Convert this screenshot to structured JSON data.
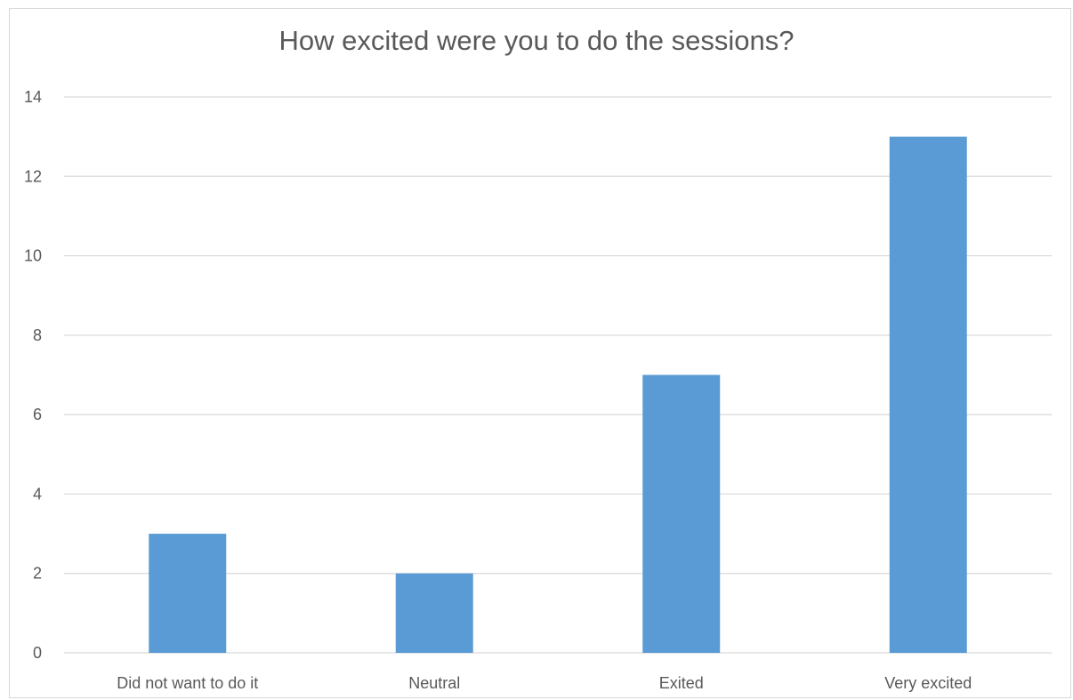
{
  "chart_data": {
    "type": "bar",
    "title": "How excited were you to do the sessions?",
    "categories": [
      "Did not want to do it",
      "Neutral",
      "Exited",
      "Very excited"
    ],
    "values": [
      3,
      2,
      7,
      13
    ],
    "ylim": [
      0,
      14
    ],
    "yticks": [
      0,
      2,
      4,
      6,
      8,
      10,
      12,
      14
    ],
    "xlabel": "",
    "ylabel": "",
    "grid": true,
    "legend": "none",
    "colors": {
      "bar": "#5b9bd5",
      "grid": "#d9d9d9",
      "text": "#595959"
    }
  }
}
